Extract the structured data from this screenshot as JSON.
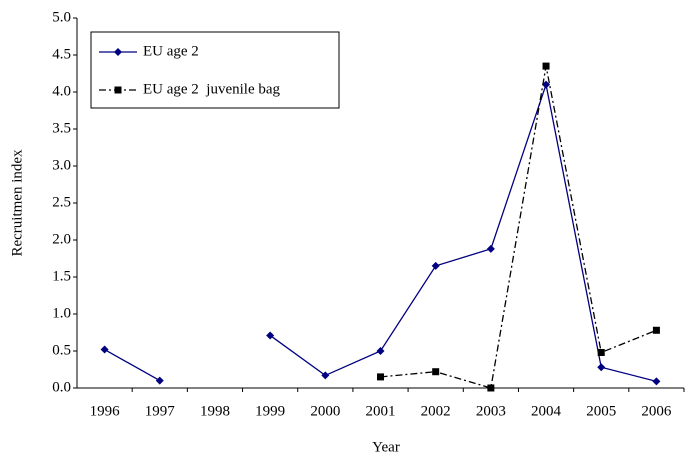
{
  "chart_data": {
    "type": "line",
    "x_label": "Year",
    "y_label": "Recruitmen index",
    "categories": [
      "1996",
      "1997",
      "1998",
      "1999",
      "2000",
      "2001",
      "2002",
      "2003",
      "2004",
      "2005",
      "2006"
    ],
    "series": [
      {
        "name": "EU age 2",
        "color": "#000080",
        "style": "solid",
        "marker": "diamond",
        "values": [
          0.52,
          0.1,
          null,
          0.71,
          0.17,
          0.5,
          1.65,
          1.88,
          4.1,
          0.28,
          0.09
        ]
      },
      {
        "name": "EU age 2  juvenile bag",
        "color": "#000000",
        "style": "dash-dot",
        "marker": "square",
        "values": [
          null,
          null,
          null,
          null,
          null,
          0.15,
          0.22,
          0.0,
          4.35,
          0.48,
          0.78
        ]
      }
    ],
    "ylim": [
      0,
      5
    ],
    "yticks": [
      {
        "value": 0,
        "label": "0.0"
      },
      {
        "value": 0.5,
        "label": "0.5"
      },
      {
        "value": 1,
        "label": "1.0"
      },
      {
        "value": 1.5,
        "label": "1.5"
      },
      {
        "value": 2,
        "label": "2.0"
      },
      {
        "value": 2.5,
        "label": "2.5"
      },
      {
        "value": 3,
        "label": "3.0"
      },
      {
        "value": 3.5,
        "label": "3.5"
      },
      {
        "value": 4,
        "label": "4.0"
      },
      {
        "value": 4.5,
        "label": "4.5"
      },
      {
        "value": 5,
        "label": "5.0"
      }
    ],
    "grid": false,
    "legend": "upper left"
  }
}
